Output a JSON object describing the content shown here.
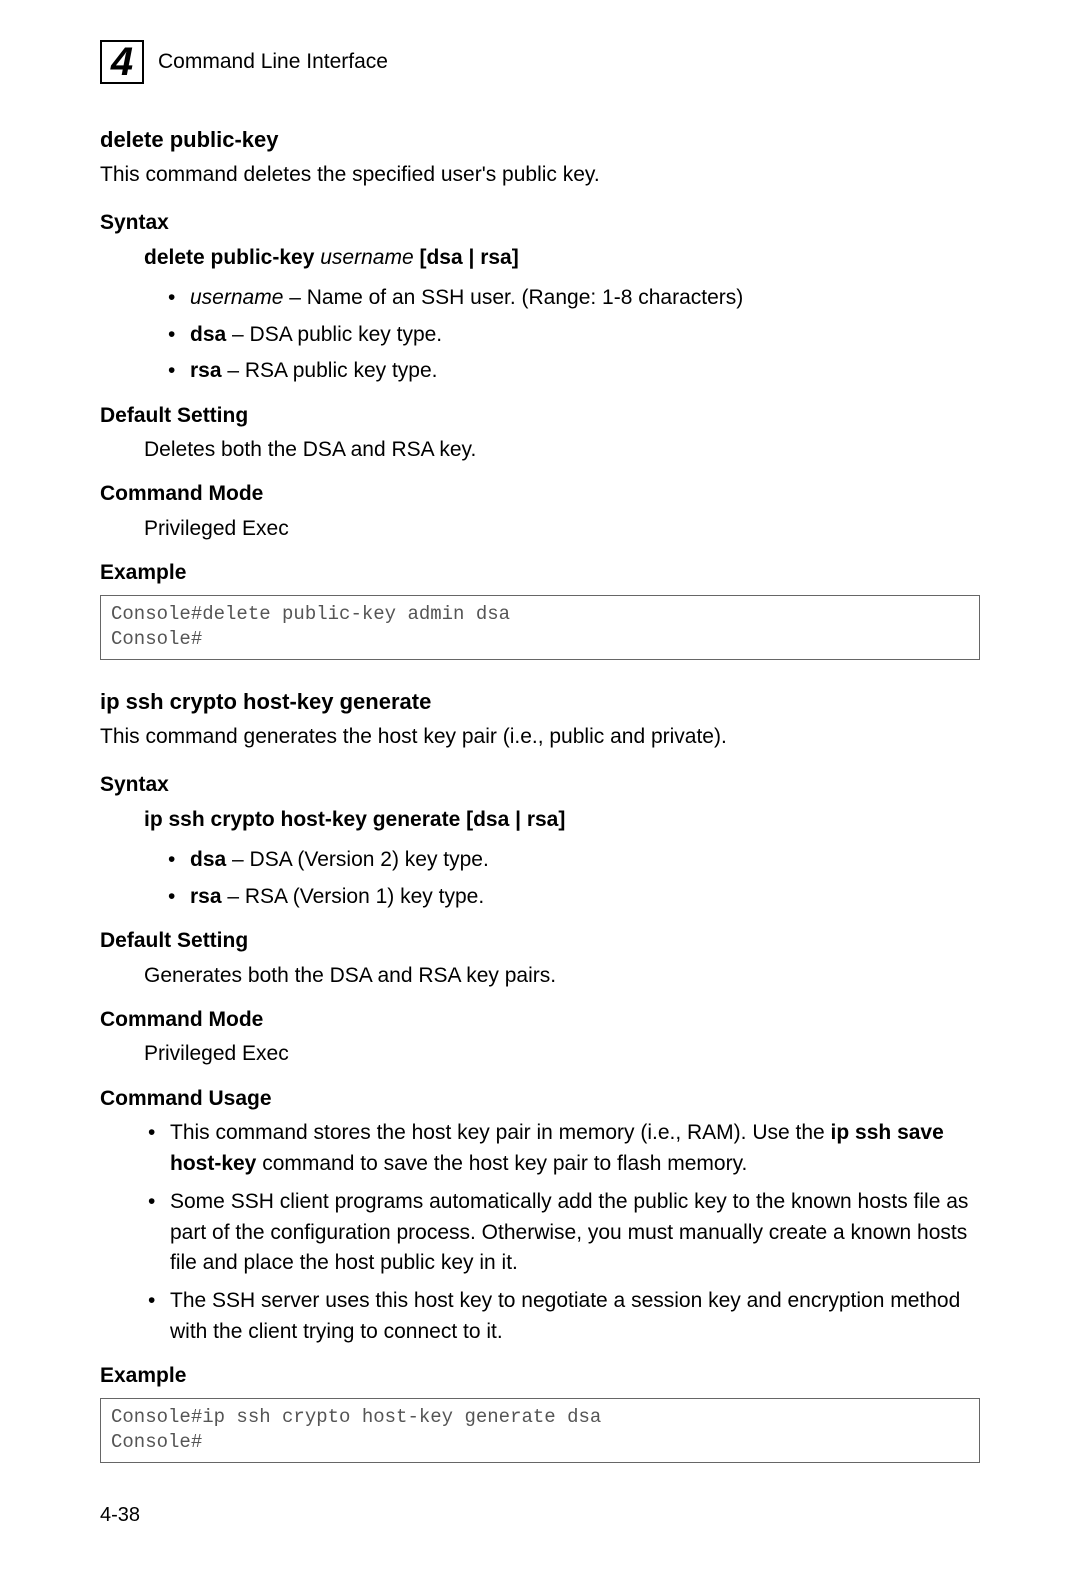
{
  "header": {
    "chapter_number": "4",
    "title": "Command Line Interface"
  },
  "cmd1": {
    "title": "delete public-key",
    "desc": "This command deletes the specified user's public key.",
    "syntax_label": "Syntax",
    "syntax_cmd_b1": "delete public-key",
    "syntax_cmd_i": "username",
    "syntax_cmd_b2": "[dsa | rsa]",
    "params": [
      {
        "name_i": "username",
        "text": " – Name of an SSH user. (Range: 1-8 characters)"
      },
      {
        "name_b": "dsa",
        "text": " – DSA public key type."
      },
      {
        "name_b": "rsa",
        "text": " – RSA public key type."
      }
    ],
    "default_label": "Default Setting",
    "default_text": "Deletes both the DSA and RSA key.",
    "mode_label": "Command Mode",
    "mode_text": "Privileged Exec",
    "example_label": "Example",
    "example_text": "Console#delete public-key admin dsa\nConsole#"
  },
  "cmd2": {
    "title": "ip ssh crypto host-key generate",
    "desc": "This command generates the host key pair (i.e., public and private).",
    "syntax_label": "Syntax",
    "syntax_cmd_b1": "ip ssh crypto host-key generate",
    "syntax_cmd_b2": "[dsa | rsa]",
    "params": [
      {
        "name_b": "dsa",
        "text": " – DSA (Version 2) key type."
      },
      {
        "name_b": "rsa",
        "text": " – RSA (Version 1) key type."
      }
    ],
    "default_label": "Default Setting",
    "default_text": "Generates both the DSA and RSA key pairs.",
    "mode_label": "Command Mode",
    "mode_text": "Privileged Exec",
    "usage_label": "Command Usage",
    "usage": [
      {
        "pre": "This command stores the host key pair in memory (i.e., RAM). Use the ",
        "bold": "ip ssh save host-key",
        "post": " command to save the host key pair to flash memory."
      },
      {
        "pre": "Some SSH client programs automatically add the public key to the known hosts file as part of the configuration process. Otherwise, you must manually create a known hosts file and place the host public key in it.",
        "bold": "",
        "post": ""
      },
      {
        "pre": "The SSH server uses this host key to negotiate a session key and encryption method with the client trying to connect to it.",
        "bold": "",
        "post": ""
      }
    ],
    "example_label": "Example",
    "example_text": "Console#ip ssh crypto host-key generate dsa\nConsole#"
  },
  "page_number": "4-38"
}
